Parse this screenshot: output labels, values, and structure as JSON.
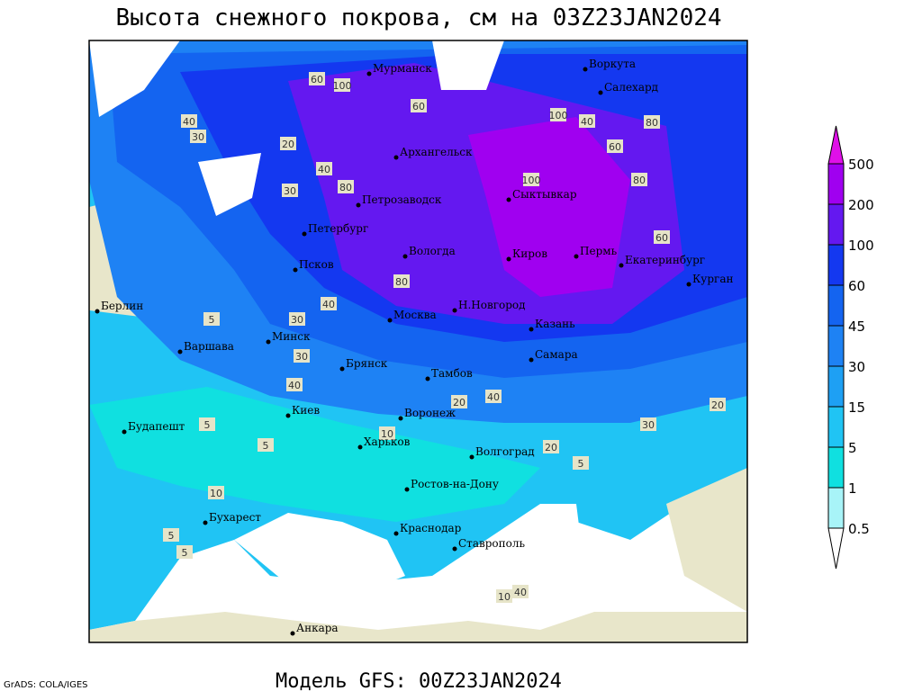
{
  "title": "Высота снежного покрова, см на 03Z23JAN2024",
  "footer": "Модель GFS: 00Z23JAN2024",
  "credit": "GrADS: COLA/IGES",
  "legend": {
    "levels": [
      0.5,
      1,
      5,
      15,
      30,
      45,
      60,
      100,
      200,
      500
    ],
    "colors": [
      "#ffffff",
      "#a8f4f8",
      "#10e0e0",
      "#20c4f4",
      "#1ea0f4",
      "#1e82f4",
      "#1464f0",
      "#1438f0",
      "#6418f0",
      "#a000f0",
      "#e010e8"
    ]
  },
  "cities": [
    "Мурманск",
    "Воркута",
    "Салехард",
    "Архангельск",
    "Петрозаводск",
    "Сыктывкар",
    "Петербург",
    "Вологда",
    "Киров",
    "Пермь",
    "Екатеринбург",
    "Курган",
    "Псков",
    "Берлин",
    "Москва",
    "Н.Новгород",
    "Казань",
    "Минск",
    "Варшава",
    "Брянск",
    "Самара",
    "Тамбов",
    "Киев",
    "Воронеж",
    "Будапешт",
    "Харьков",
    "Волгоград",
    "Ростов-на-Дону",
    "Бухарест",
    "Краснодар",
    "Ставрополь",
    "Анкара"
  ],
  "contour_labels": [
    60,
    100,
    60,
    40,
    30,
    20,
    40,
    30,
    80,
    100,
    80,
    60,
    100,
    60,
    40,
    80,
    80,
    40,
    20,
    5,
    30,
    40,
    30,
    40,
    10,
    5,
    20,
    30,
    20,
    5,
    10,
    5,
    5,
    10,
    40,
    5
  ]
}
